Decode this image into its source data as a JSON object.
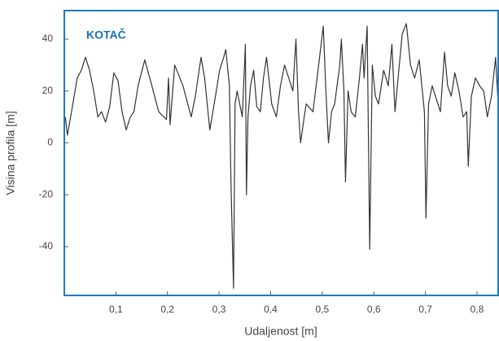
{
  "chart_data": {
    "type": "line",
    "title": "KOTAČ",
    "x_label": "Udaljenost [m]",
    "y_label": "Visina profila [m]",
    "x": [
      0.002,
      0.006,
      0.014,
      0.025,
      0.033,
      0.041,
      0.049,
      0.057,
      0.065,
      0.072,
      0.08,
      0.088,
      0.096,
      0.104,
      0.112,
      0.12,
      0.128,
      0.135,
      0.143,
      0.156,
      0.167,
      0.183,
      0.198,
      0.202,
      0.205,
      0.214,
      0.23,
      0.246,
      0.254,
      0.265,
      0.272,
      0.282,
      0.293,
      0.301,
      0.309,
      0.313,
      0.32,
      0.323,
      0.328,
      0.331,
      0.335,
      0.34,
      0.345,
      0.351,
      0.353,
      0.356,
      0.361,
      0.367,
      0.373,
      0.38,
      0.386,
      0.392,
      0.402,
      0.411,
      0.419,
      0.427,
      0.435,
      0.443,
      0.449,
      0.454,
      0.458,
      0.465,
      0.469,
      0.482,
      0.493,
      0.502,
      0.507,
      0.512,
      0.518,
      0.524,
      0.534,
      0.537,
      0.542,
      0.545,
      0.55,
      0.556,
      0.564,
      0.572,
      0.578,
      0.581,
      0.587,
      0.592,
      0.597,
      0.603,
      0.609,
      0.619,
      0.628,
      0.635,
      0.641,
      0.647,
      0.655,
      0.663,
      0.671,
      0.679,
      0.688,
      0.694,
      0.698,
      0.701,
      0.706,
      0.713,
      0.721,
      0.729,
      0.737,
      0.743,
      0.75,
      0.757,
      0.765,
      0.773,
      0.78,
      0.783,
      0.789,
      0.797,
      0.805,
      0.813,
      0.82,
      0.828,
      0.836,
      0.841
    ],
    "series": [
      {
        "name": "KOTAČ",
        "color": "#333333",
        "values": [
          10,
          3,
          12,
          25,
          28,
          33,
          28,
          20,
          10,
          12,
          8,
          14,
          27,
          24,
          12,
          5,
          10,
          12,
          22,
          32,
          24,
          12,
          9,
          25,
          7,
          30,
          22,
          10,
          18,
          33,
          25,
          5,
          18,
          28,
          33,
          36,
          22,
          -15,
          -56,
          15,
          20,
          15,
          10,
          38,
          -20,
          10,
          22,
          28,
          14,
          12,
          25,
          33,
          15,
          10,
          22,
          30,
          25,
          20,
          40,
          12,
          0,
          10,
          15,
          12,
          30,
          45,
          20,
          0,
          12,
          15,
          30,
          40,
          20,
          -15,
          20,
          12,
          10,
          25,
          38,
          25,
          45,
          -41,
          30,
          18,
          15,
          28,
          22,
          38,
          12,
          25,
          42,
          46,
          30,
          25,
          32,
          20,
          12,
          -29,
          15,
          22,
          17,
          12,
          35,
          22,
          18,
          27,
          20,
          10,
          12,
          -9,
          18,
          25,
          22,
          20,
          10,
          18,
          33,
          15
        ]
      }
    ],
    "xlim": [
      0,
      0.841
    ],
    "ylim": [
      -58.8,
      51
    ],
    "xticks": [
      {
        "value": 0.1,
        "label": "0,1"
      },
      {
        "value": 0.2,
        "label": "0,2"
      },
      {
        "value": 0.3,
        "label": "0,3"
      },
      {
        "value": 0.4,
        "label": "0,4"
      },
      {
        "value": 0.5,
        "label": "0,5"
      },
      {
        "value": 0.6,
        "label": "0,6"
      },
      {
        "value": 0.7,
        "label": "0,7"
      },
      {
        "value": 0.8,
        "label": "0,8"
      }
    ],
    "yticks": [
      -40,
      -20,
      0,
      20,
      40
    ],
    "grid": false,
    "frame_color": "#1a7bc0",
    "title_color": "#1a6fb8"
  }
}
